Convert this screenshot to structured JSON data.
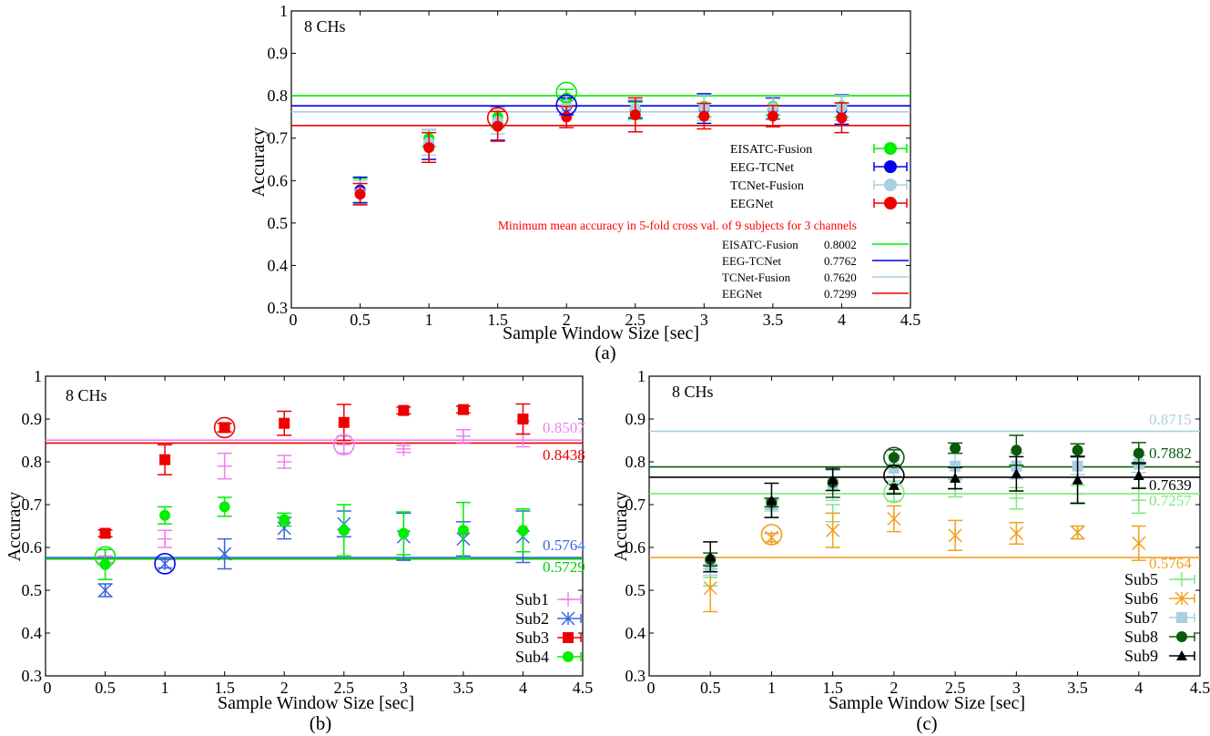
{
  "chart_data": [
    {
      "id": "a",
      "type": "scatter",
      "caption": "(a)",
      "annotation": "8 CHs",
      "xlabel": "Sample Window Size [sec]",
      "ylabel": "Accuracy",
      "xlim": [
        0,
        4.5
      ],
      "ylim": [
        0.3,
        1
      ],
      "xticks": [
        "0",
        "0.5",
        "1",
        "1.5",
        "2",
        "2.5",
        "3",
        "3.5",
        "4",
        "4.5"
      ],
      "yticks": [
        "0.3",
        "0.4",
        "0.5",
        "0.6",
        "0.7",
        "0.8",
        "0.9",
        "1"
      ],
      "x": [
        0.5,
        1,
        1.5,
        2,
        2.5,
        3,
        3.5,
        4
      ],
      "series": [
        {
          "name": "EISATC-Fusion",
          "color": "#00ee00",
          "marker": "circle",
          "values": [
            0.575,
            0.7,
            0.75,
            0.795,
            0.765,
            0.775,
            0.775,
            0.775
          ],
          "errors": [
            0.03,
            0.02,
            0.025,
            0.02,
            0.02,
            0.025,
            0.02,
            0.025
          ]
        },
        {
          "name": "EEG-TCNet",
          "color": "#0000ee",
          "marker": "circle",
          "values": [
            0.578,
            0.685,
            0.735,
            0.775,
            0.768,
            0.77,
            0.77,
            0.768
          ],
          "errors": [
            0.03,
            0.035,
            0.04,
            0.02,
            0.02,
            0.035,
            0.025,
            0.035
          ]
        },
        {
          "name": "TCNet-Fusion",
          "color": "#a8d0e0",
          "marker": "circle",
          "values": [
            0.572,
            0.69,
            0.74,
            0.778,
            0.77,
            0.772,
            0.772,
            0.772
          ],
          "errors": [
            0.028,
            0.03,
            0.03,
            0.02,
            0.02,
            0.03,
            0.025,
            0.03
          ]
        },
        {
          "name": "EEGNet",
          "color": "#ee0000",
          "marker": "circle",
          "values": [
            0.568,
            0.678,
            0.728,
            0.75,
            0.755,
            0.752,
            0.752,
            0.748
          ],
          "errors": [
            0.025,
            0.035,
            0.035,
            0.025,
            0.04,
            0.03,
            0.025,
            0.035
          ]
        }
      ],
      "highlight_circles": [
        {
          "x": 2,
          "y": 0.808,
          "color": "#00ee00"
        },
        {
          "x": 2,
          "y": 0.778,
          "color": "#0000ee"
        },
        {
          "x": 1.5,
          "y": 0.748,
          "color": "#ee0000"
        }
      ],
      "ref_note": "Minimum mean accuracy in 5-fold cross val. of 9 subjects for 3 channels",
      "ref_lines": [
        {
          "name": "EISATC-Fusion",
          "value": 0.8002,
          "label": "0.8002",
          "color": "#00ee00"
        },
        {
          "name": "EEG-TCNet",
          "value": 0.7762,
          "label": "0.7762",
          "color": "#0000ee"
        },
        {
          "name": "TCNet-Fusion",
          "value": 0.762,
          "label": "0.7620",
          "color": "#a8d0e0"
        },
        {
          "name": "EEGNet",
          "value": 0.7299,
          "label": "0.7299",
          "color": "#ee0000"
        }
      ]
    },
    {
      "id": "b",
      "type": "scatter",
      "caption": "(b)",
      "annotation": "8 CHs",
      "xlabel": "Sample Window Size [sec]",
      "ylabel": "Accuracy",
      "xlim": [
        0,
        4.5
      ],
      "ylim": [
        0.3,
        1
      ],
      "xticks": [
        "0",
        "0.5",
        "1",
        "1.5",
        "2",
        "2.5",
        "3",
        "3.5",
        "4",
        "4.5"
      ],
      "yticks": [
        "0.3",
        "0.4",
        "0.5",
        "0.6",
        "0.7",
        "0.8",
        "0.9",
        "1"
      ],
      "x": [
        0.5,
        1,
        1.5,
        2,
        2.5,
        3,
        3.5,
        4
      ],
      "series": [
        {
          "name": "Sub1",
          "color": "#ee82ee",
          "marker": "plus",
          "values": [
            0.58,
            0.62,
            0.79,
            0.8,
            0.84,
            0.83,
            0.86,
            0.865
          ],
          "errors": [
            0.015,
            0.02,
            0.03,
            0.015,
            0.02,
            0.008,
            0.015,
            0.03
          ]
        },
        {
          "name": "Sub2",
          "color": "#3a66dd",
          "marker": "asterisk",
          "values": [
            0.5,
            0.562,
            0.585,
            0.645,
            0.655,
            0.625,
            0.62,
            0.625
          ],
          "errors": [
            0.015,
            0.01,
            0.035,
            0.025,
            0.03,
            0.055,
            0.04,
            0.06
          ]
        },
        {
          "name": "Sub3",
          "color": "#ee0000",
          "marker": "square",
          "values": [
            0.633,
            0.805,
            0.88,
            0.89,
            0.892,
            0.92,
            0.922,
            0.9
          ],
          "errors": [
            0.008,
            0.035,
            0.01,
            0.028,
            0.042,
            0.008,
            0.008,
            0.035
          ]
        },
        {
          "name": "Sub4",
          "color": "#00ee00",
          "marker": "circle",
          "values": [
            0.56,
            0.675,
            0.695,
            0.665,
            0.64,
            0.633,
            0.64,
            0.64
          ],
          "errors": [
            0.035,
            0.02,
            0.022,
            0.015,
            0.06,
            0.05,
            0.065,
            0.05
          ]
        }
      ],
      "highlight_circles": [
        {
          "x": 0.5,
          "y": 0.578,
          "color": "#00ee00"
        },
        {
          "x": 1,
          "y": 0.562,
          "color": "#0000ee"
        },
        {
          "x": 1.5,
          "y": 0.88,
          "color": "#ee0000"
        },
        {
          "x": 2.5,
          "y": 0.84,
          "color": "#ee82ee"
        }
      ],
      "ref_lines": [
        {
          "name": "Sub1",
          "value": 0.8507,
          "label": "0.8507",
          "color": "#ee82ee"
        },
        {
          "name": "Sub3",
          "value": 0.8438,
          "label": "0.8438",
          "color": "#ee0000"
        },
        {
          "name": "Sub2",
          "value": 0.5764,
          "label": "0.5764",
          "color": "#3a66dd"
        },
        {
          "name": "Sub4",
          "value": 0.5729,
          "label": "0.5729",
          "color": "#00cc00"
        }
      ]
    },
    {
      "id": "c",
      "type": "scatter",
      "caption": "(c)",
      "annotation": "8 CHs",
      "xlabel": "Sample Window Size [sec]",
      "ylabel": "Accuracy",
      "xlim": [
        0,
        4.5
      ],
      "ylim": [
        0.3,
        1
      ],
      "xticks": [
        "0",
        "0.5",
        "1",
        "1.5",
        "2",
        "2.5",
        "3",
        "3.5",
        "4",
        "4.5"
      ],
      "yticks": [
        "0.3",
        "0.4",
        "0.5",
        "0.6",
        "0.7",
        "0.8",
        "0.9",
        "1"
      ],
      "x": [
        0.5,
        1,
        1.5,
        2,
        2.5,
        3,
        3.5,
        4
      ],
      "series": [
        {
          "name": "Sub5",
          "color": "#7ee87e",
          "marker": "plus",
          "values": [
            0.53,
            0.69,
            0.68,
            0.728,
            0.738,
            0.715,
            0.725,
            0.71
          ],
          "errors": [
            0.02,
            0.02,
            0.02,
            0.02,
            0.02,
            0.025,
            0.02,
            0.03
          ]
        },
        {
          "name": "Sub6",
          "color": "#f0a020",
          "marker": "asterisk",
          "values": [
            0.505,
            0.623,
            0.64,
            0.667,
            0.628,
            0.633,
            0.635,
            0.61
          ],
          "errors": [
            0.055,
            0.01,
            0.04,
            0.03,
            0.035,
            0.025,
            0.015,
            0.04
          ]
        },
        {
          "name": "Sub7",
          "color": "#a8d0e0",
          "marker": "square",
          "values": [
            0.555,
            0.7,
            0.745,
            0.785,
            0.79,
            0.79,
            0.79,
            0.795
          ],
          "errors": [
            0.02,
            0.015,
            0.035,
            0.03,
            0.03,
            0.03,
            0.02,
            0.02
          ]
        },
        {
          "name": "Sub8",
          "color": "#0a5a0a",
          "marker": "circle",
          "values": [
            0.572,
            0.705,
            0.752,
            0.81,
            0.832,
            0.827,
            0.827,
            0.82
          ],
          "errors": [
            0.015,
            0.01,
            0.035,
            0.018,
            0.012,
            0.035,
            0.015,
            0.025
          ]
        },
        {
          "name": "Sub9",
          "color": "#000000",
          "marker": "triangle",
          "values": [
            0.578,
            0.71,
            0.758,
            0.745,
            0.762,
            0.772,
            0.758,
            0.768
          ],
          "errors": [
            0.035,
            0.04,
            0.025,
            0.02,
            0.025,
            0.04,
            0.055,
            0.03
          ]
        }
      ],
      "highlight_circles": [
        {
          "x": 1,
          "y": 0.63,
          "color": "#f0a020"
        },
        {
          "x": 2,
          "y": 0.81,
          "color": "#0a5a0a"
        },
        {
          "x": 2,
          "y": 0.768,
          "color": "#000000"
        },
        {
          "x": 2,
          "y": 0.728,
          "color": "#7ee87e"
        }
      ],
      "ref_lines": [
        {
          "name": "Sub7",
          "value": 0.8715,
          "label": "0.8715",
          "color": "#a8d0e0"
        },
        {
          "name": "Sub8",
          "value": 0.7882,
          "label": "0.7882",
          "color": "#0a5a0a"
        },
        {
          "name": "Sub9",
          "value": 0.7639,
          "label": "0.7639",
          "color": "#000000"
        },
        {
          "name": "Sub5",
          "value": 0.7257,
          "label": "0.7257",
          "color": "#7ee87e"
        },
        {
          "name": "Sub6",
          "value": 0.5764,
          "label": "0.5764",
          "color": "#f0a020"
        }
      ]
    }
  ]
}
